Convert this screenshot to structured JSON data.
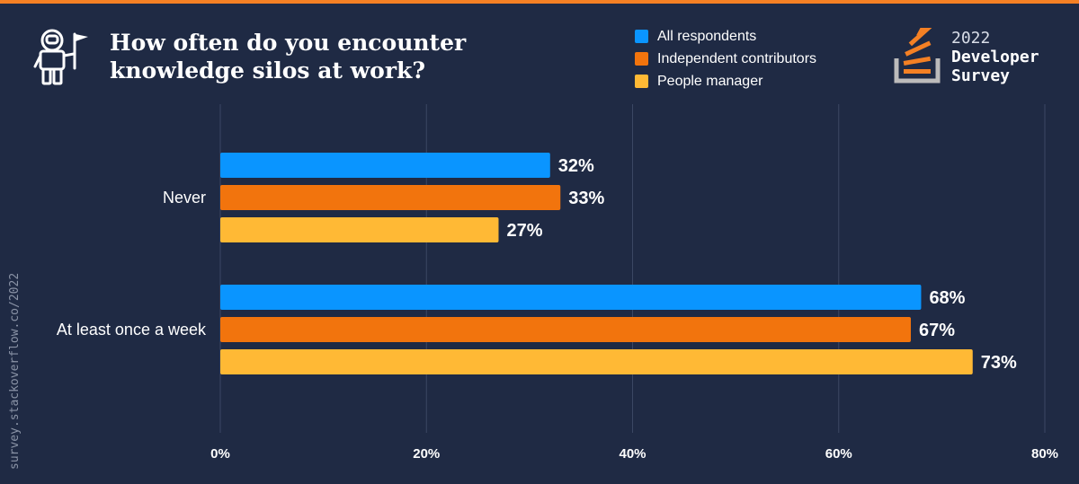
{
  "header": {
    "title_line1": "How often do you encounter",
    "title_line2": "knowledge silos at work?"
  },
  "brand": {
    "year": "2022",
    "line1": "Developer",
    "line2": "Survey",
    "logo_icon": "stackoverflow-logo-icon",
    "mascot_icon": "astronaut-flag-icon"
  },
  "watermark": "survey.stackoverflow.co/2022",
  "colors": {
    "background": "#1f2a44",
    "accent": "#f48024",
    "grid": "#3b4763"
  },
  "chart_data": {
    "type": "bar",
    "orientation": "horizontal",
    "title": "How often do you encounter knowledge silos at work?",
    "categories": [
      "Never",
      "At least once a week"
    ],
    "series": [
      {
        "name": "All respondents",
        "color": "#0a95ff",
        "values": [
          32,
          68
        ],
        "labels": [
          "32%",
          "68%"
        ]
      },
      {
        "name": "Independent contributors",
        "color": "#f2740d",
        "values": [
          33,
          67
        ],
        "labels": [
          "33%",
          "67%"
        ]
      },
      {
        "name": "People manager",
        "color": "#ffb935",
        "values": [
          27,
          73
        ],
        "labels": [
          "27%",
          "73%"
        ]
      }
    ],
    "xlim": [
      0,
      80
    ],
    "xticks": [
      0,
      20,
      40,
      60,
      80
    ],
    "xtick_labels": [
      "0%",
      "20%",
      "40%",
      "60%",
      "80%"
    ],
    "grid": true,
    "legend": "top-right"
  }
}
